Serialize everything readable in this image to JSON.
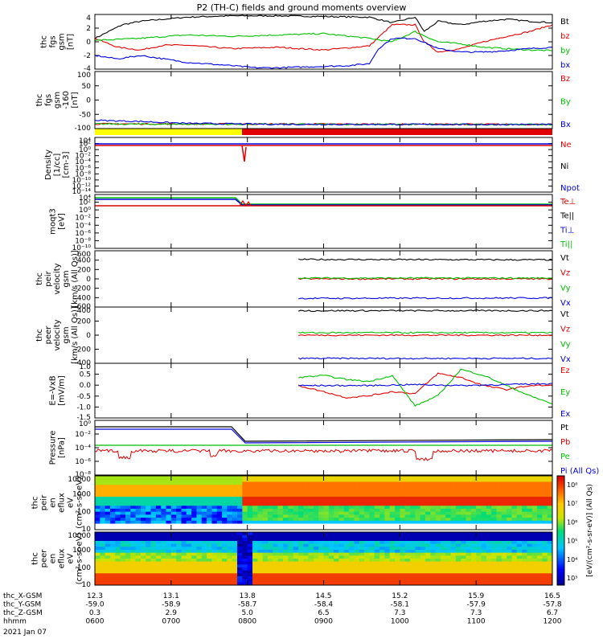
{
  "title": "P2 (TH-C) fields and ground moments overview",
  "date_label": "2021 Jan 07",
  "colors": {
    "black": "#000000",
    "red": "#e00000",
    "green": "#00c000",
    "blue": "#0000e0",
    "yellow": "#ffff00"
  },
  "chart_data": [
    {
      "type": "line",
      "ylabel": [
        "thc",
        "fgs",
        "gsm",
        "[nT]"
      ],
      "yticks": [
        "4",
        "2",
        "0",
        "-2",
        "-4"
      ],
      "ylim": [
        -4,
        4
      ],
      "series": [
        {
          "name": "Bt",
          "color": "black",
          "x": [
            0,
            0.03,
            0.06,
            0.1,
            0.2,
            0.3,
            0.4,
            0.5,
            0.6,
            0.65,
            0.7,
            0.72,
            0.75,
            0.8,
            0.85,
            0.9,
            0.95,
            1.0
          ],
          "y": [
            0.5,
            1.5,
            2.5,
            3.0,
            3.6,
            3.8,
            3.8,
            3.7,
            3.6,
            2.8,
            3.6,
            1.5,
            3.0,
            2.5,
            3.0,
            3.3,
            3.0,
            2.8
          ]
        },
        {
          "name": "bz",
          "color": "red",
          "x": [
            0,
            0.05,
            0.1,
            0.15,
            0.2,
            0.3,
            0.4,
            0.5,
            0.6,
            0.65,
            0.7,
            0.72,
            0.75,
            0.8,
            0.85,
            0.9,
            0.95,
            1.0
          ],
          "y": [
            0.5,
            -0.8,
            -1.2,
            -0.5,
            -0.5,
            -1.0,
            -0.8,
            -1.2,
            -0.6,
            2.5,
            2.5,
            0.0,
            -1.5,
            -1.0,
            0.0,
            0.8,
            1.5,
            2.5
          ]
        },
        {
          "name": "by",
          "color": "green",
          "x": [
            0,
            0.1,
            0.2,
            0.3,
            0.4,
            0.5,
            0.6,
            0.65,
            0.7,
            0.75,
            0.8,
            0.85,
            0.9,
            0.95,
            1.0
          ],
          "y": [
            0.2,
            0.5,
            1.0,
            0.8,
            1.0,
            1.2,
            0.5,
            0.0,
            1.5,
            0.0,
            -0.3,
            -0.8,
            -1.0,
            -1.2,
            -1.3
          ]
        },
        {
          "name": "bx",
          "color": "blue",
          "x": [
            0,
            0.05,
            0.1,
            0.2,
            0.3,
            0.35,
            0.4,
            0.5,
            0.55,
            0.6,
            0.62,
            0.65,
            0.7,
            0.75,
            0.8,
            0.85,
            0.9,
            0.95,
            1.0
          ],
          "y": [
            -2.0,
            -2.5,
            -2.0,
            -3.0,
            -3.5,
            -3.8,
            -3.8,
            -3.6,
            -3.5,
            -3.2,
            -1.0,
            0.5,
            0.5,
            -1.0,
            -1.5,
            -1.5,
            -1.3,
            -1.0,
            -0.8
          ]
        }
      ],
      "legend": [
        "Bt",
        "bz",
        "by",
        "bx"
      ]
    },
    {
      "type": "line",
      "ylabel": [
        "thc",
        "fgs",
        "gsm",
        "-160",
        "[nT]"
      ],
      "yticks": [
        "100",
        "50",
        "0",
        "-50",
        "-100"
      ],
      "ylim": [
        -130,
        110
      ],
      "series": [
        {
          "name": "Bz",
          "color": "red",
          "x": [
            0,
            1
          ],
          "y": [
            -110,
            -112
          ]
        },
        {
          "name": "By",
          "color": "green",
          "x": [
            0,
            1
          ],
          "y": [
            -111,
            -113
          ]
        },
        {
          "name": "Bx",
          "color": "blue",
          "x": [
            0,
            0.1,
            0.2,
            0.3,
            0.4,
            1.0
          ],
          "y": [
            -95,
            -100,
            -108,
            -110,
            -112,
            -113
          ]
        }
      ],
      "legend": [
        "Bz",
        "By",
        "Bx"
      ]
    },
    {
      "type": "line",
      "ylabel": [
        "Density",
        "[1/cc]",
        "[cm-3]"
      ],
      "yticks": [
        "10⁴",
        "10²",
        "10⁰",
        "10⁻²",
        "10⁻⁴",
        "10⁻⁶",
        "10⁻⁸",
        "10⁻¹⁰",
        "10⁻¹²",
        "10⁻¹⁴"
      ],
      "ylog": true,
      "legend": [
        "Ne",
        "Ni",
        "Npot"
      ]
    },
    {
      "type": "line",
      "ylabel": [
        "moqt3",
        "[eV]"
      ],
      "yticks": [
        "10⁴",
        "10²",
        "10⁰",
        "10⁻²",
        "10⁻⁴",
        "10⁻⁶",
        "10⁻⁸",
        "10⁻¹⁰"
      ],
      "ylog": true,
      "legend": [
        "Te⊥",
        "Te||",
        "Ti⊥",
        "Ti||"
      ]
    },
    {
      "type": "line",
      "ylabel": [
        "thc",
        "peir",
        "velocity",
        "gsm",
        "[km/s (All Qs)]"
      ],
      "yticks": [
        "600",
        "400",
        "200",
        "0",
        "-200",
        "-400",
        "-600"
      ],
      "ylim": [
        -650,
        650
      ],
      "series": [
        {
          "name": "Vt",
          "color": "black",
          "x": [
            0.445,
            1
          ],
          "y": [
            450,
            440
          ]
        },
        {
          "name": "Vz",
          "color": "red",
          "x": [
            0.445,
            1
          ],
          "y": [
            0,
            0
          ]
        },
        {
          "name": "Vy",
          "color": "green",
          "x": [
            0.445,
            1
          ],
          "y": [
            20,
            20
          ]
        },
        {
          "name": "Vx",
          "color": "blue",
          "x": [
            0.445,
            1
          ],
          "y": [
            -450,
            -440
          ]
        }
      ],
      "legend": [
        "Vt",
        "Vz",
        "Vy",
        "Vx"
      ]
    },
    {
      "type": "line",
      "ylabel": [
        "thc",
        "peer",
        "velocity",
        "gsm",
        "[km/s (All Qs)]"
      ],
      "yticks": [
        "400",
        "200",
        "0",
        "-200",
        "-400"
      ],
      "ylim": [
        -460,
        460
      ],
      "series": [
        {
          "name": "Vt",
          "color": "black",
          "x": [
            0.445,
            1
          ],
          "y": [
            400,
            400
          ]
        },
        {
          "name": "Vz",
          "color": "red",
          "x": [
            0.445,
            1
          ],
          "y": [
            0,
            0
          ]
        },
        {
          "name": "Vy",
          "color": "green",
          "x": [
            0.445,
            1
          ],
          "y": [
            40,
            40
          ]
        },
        {
          "name": "Vx",
          "color": "blue",
          "x": [
            0.445,
            1
          ],
          "y": [
            -380,
            -380
          ]
        }
      ],
      "legend": [
        "Vt",
        "Vz",
        "Vy",
        "Vx"
      ]
    },
    {
      "type": "line",
      "ylabel": [
        "E=-VxB",
        "[mV/m]"
      ],
      "yticks": [
        "1.0",
        "0.5",
        "0.0",
        "-0.5",
        "-1.0",
        "-1.5"
      ],
      "ylim": [
        -1.6,
        1.1
      ],
      "series": [
        {
          "name": "Ez",
          "color": "red",
          "x": [
            0.445,
            0.5,
            0.55,
            0.6,
            0.65,
            0.7,
            0.75,
            0.8,
            0.85,
            0.9,
            0.95,
            1.0
          ],
          "y": [
            0.0,
            -0.3,
            -0.6,
            -0.5,
            -0.3,
            -0.4,
            0.6,
            0.4,
            0.0,
            -0.2,
            0.0,
            0.0
          ]
        },
        {
          "name": "Ey",
          "color": "green",
          "x": [
            0.445,
            0.5,
            0.55,
            0.6,
            0.65,
            0.7,
            0.75,
            0.8,
            0.85,
            0.9,
            0.95,
            1.0
          ],
          "y": [
            0.4,
            0.5,
            0.3,
            0.2,
            0.5,
            -1.0,
            -0.5,
            0.8,
            0.5,
            0.0,
            -0.5,
            -0.9
          ]
        },
        {
          "name": "Ex",
          "color": "blue",
          "x": [
            0.445,
            0.6,
            0.7,
            0.8,
            0.9,
            1.0
          ],
          "y": [
            0.0,
            0.0,
            0.05,
            0.0,
            0.05,
            0.1
          ]
        }
      ],
      "legend": [
        "Ez",
        "Ey",
        "Ex"
      ]
    },
    {
      "type": "line",
      "ylabel": [
        "Pressure",
        "[nPa]"
      ],
      "yticks": [
        "10⁰",
        "10⁻²",
        "10⁻⁴",
        "10⁻⁶",
        "10⁻⁸"
      ],
      "ylog": true,
      "legend": [
        "Pt",
        "Pb",
        "Pe",
        "Pi (All Qs)"
      ]
    },
    {
      "type": "heatmap",
      "ylabel": [
        "thc",
        "peir",
        "en",
        "eflux",
        "eV",
        "(cm²-s-sr-eV)"
      ],
      "yticks": [
        "10000",
        "1000",
        "100",
        "10"
      ]
    },
    {
      "type": "heatmap",
      "ylabel": [
        "thc",
        "peer",
        "en",
        "eflux",
        "eV",
        "(cm²-s-sr-eV)"
      ],
      "yticks": [
        "10000",
        "1000",
        "100",
        "10"
      ],
      "colorbar_label": "[eV/(cm²-s-sr-eV)] (All Qs)",
      "colorbar_ticks": [
        "10⁸",
        "10⁷",
        "10⁶",
        "10⁵",
        "10⁴",
        "10³"
      ]
    }
  ],
  "xaxis": {
    "rows": [
      {
        "label": "thc_X-GSM",
        "values": [
          "12.3",
          "13.1",
          "13.8",
          "14.5",
          "15.2",
          "15.9",
          "16.5"
        ]
      },
      {
        "label": "thc_Y-GSM",
        "values": [
          "-59.0",
          "-58.9",
          "-58.7",
          "-58.4",
          "-58.1",
          "-57.9",
          "-57.8"
        ]
      },
      {
        "label": "thc_Z-GSM",
        "values": [
          "0.3",
          "2.9",
          "5.0",
          "6.5",
          "7.3",
          "7.3",
          "6.7"
        ]
      },
      {
        "label": "hhmm",
        "values": [
          "0600",
          "0700",
          "0800",
          "0900",
          "1000",
          "1100",
          "1200"
        ]
      }
    ]
  }
}
